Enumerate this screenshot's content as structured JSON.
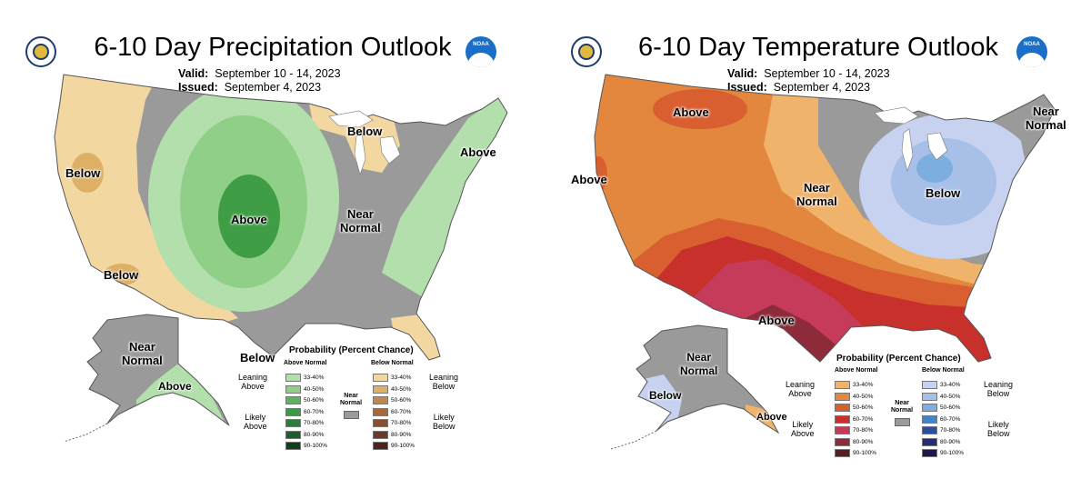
{
  "precip": {
    "title": "6-10 Day Precipitation Outlook",
    "valid_label": "Valid:",
    "valid_value": "September 10 - 14, 2023",
    "issued_label": "Issued:",
    "issued_value": "September 4, 2023",
    "map_labels": {
      "below_west": "Below",
      "below_southwest": "Below",
      "above_center": "Above",
      "below_great_lakes": "Below",
      "above_northeast": "Above",
      "near_normal_line1": "Near",
      "near_normal_line2": "Normal",
      "below_south": "Below",
      "alaska_near_normal_line1": "Near",
      "alaska_near_normal_line2": "Normal",
      "alaska_above": "Above"
    },
    "legend": {
      "title": "Probability (Percent Chance)",
      "above_header": "Above Normal",
      "below_header": "Below Normal",
      "leaning_above_1": "Leaning",
      "leaning_above_2": "Above",
      "likely_above_1": "Likely",
      "likely_above_2": "Above",
      "leaning_below_1": "Leaning",
      "leaning_below_2": "Below",
      "likely_below_1": "Likely",
      "likely_below_2": "Below",
      "near_normal_1": "Near",
      "near_normal_2": "Normal",
      "ranges": [
        "33-40%",
        "40-50%",
        "50-60%",
        "60-70%",
        "70-80%",
        "80-90%",
        "90-100%"
      ],
      "above_colors": [
        "#b3dfac",
        "#8fcf87",
        "#5cb55a",
        "#3a9a48",
        "#2d7c3a",
        "#1e5e2a",
        "#123d19"
      ],
      "below_colors": [
        "#f3d7a1",
        "#ddb066",
        "#c4864d",
        "#a6693f",
        "#875033",
        "#6a3b28",
        "#4a2419"
      ],
      "near_color": "#9a9a9a"
    }
  },
  "temp": {
    "title": "6-10 Day Temperature Outlook",
    "valid_label": "Valid:",
    "valid_value": "September 10 - 14, 2023",
    "issued_label": "Issued:",
    "issued_value": "September 4, 2023",
    "map_labels": {
      "above_north": "Above",
      "above_west": "Above",
      "near_normal_line1": "Near",
      "near_normal_line2": "Normal",
      "below_great_lakes": "Below",
      "near_normal_ne_line1": "Near",
      "near_normal_ne_line2": "Normal",
      "above_south": "Above",
      "alaska_near_normal_line1": "Near",
      "alaska_near_normal_line2": "Normal",
      "alaska_below": "Below",
      "alaska_above": "Above"
    },
    "legend": {
      "title": "Probability (Percent Chance)",
      "above_header": "Above Normal",
      "below_header": "Below Normal",
      "leaning_above_1": "Leaning",
      "leaning_above_2": "Above",
      "likely_above_1": "Likely",
      "likely_above_2": "Above",
      "leaning_below_1": "Leaning",
      "leaning_below_2": "Below",
      "likely_below_1": "Likely",
      "likely_below_2": "Below",
      "near_normal_1": "Near",
      "near_normal_2": "Normal",
      "ranges": [
        "33-40%",
        "40-50%",
        "50-60%",
        "60-70%",
        "70-80%",
        "80-90%",
        "90-100%"
      ],
      "above_colors": [
        "#f0b36c",
        "#e3873e",
        "#d95f30",
        "#c8302c",
        "#c63a5a",
        "#8d2b3a",
        "#5c1a22"
      ],
      "below_colors": [
        "#c6d2ef",
        "#a8c0e7",
        "#7cafe0",
        "#3f86c9",
        "#2b4f9a",
        "#262d78",
        "#1c1a4d"
      ],
      "near_color": "#9a9a9a"
    }
  }
}
